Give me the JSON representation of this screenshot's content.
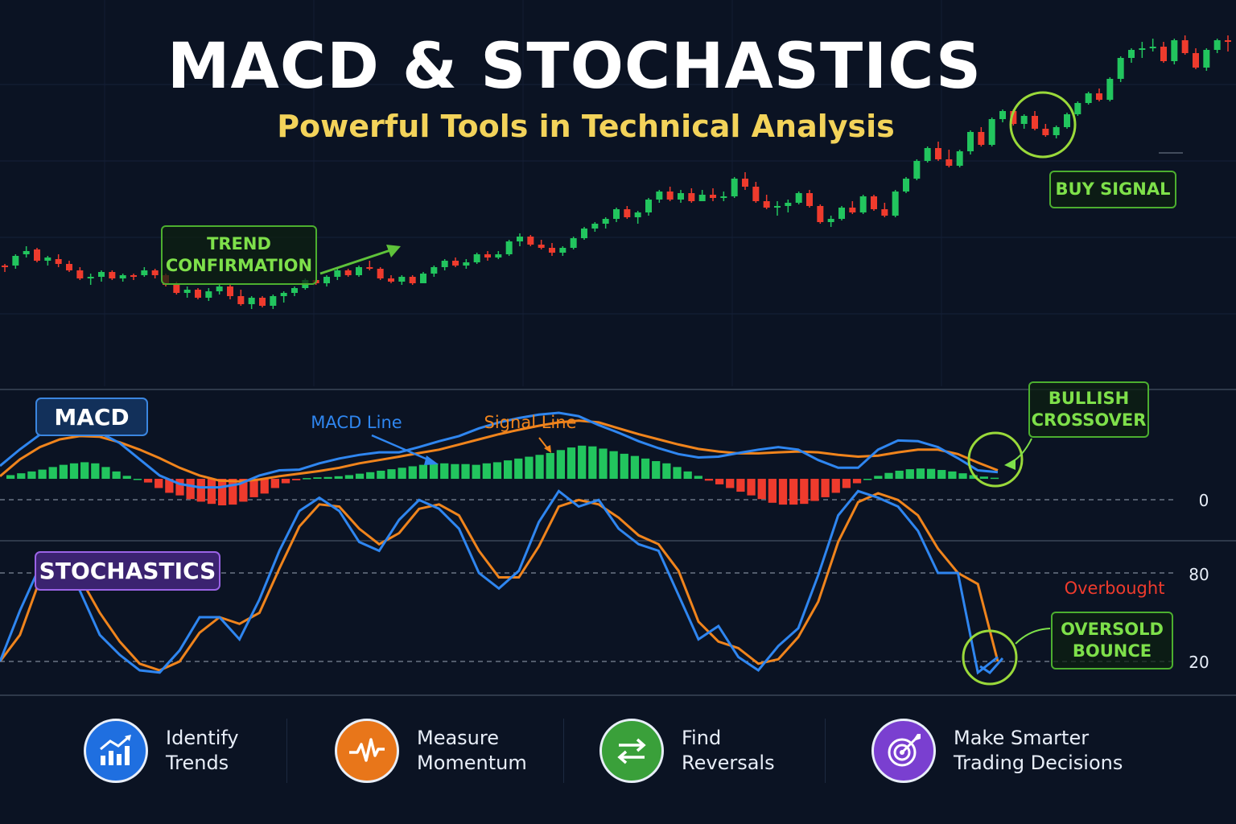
{
  "header": {
    "title": "MACD & STOCHASTICS",
    "subtitle": "Powerful Tools in Technical Analysis"
  },
  "callouts": {
    "trend": [
      "TREND",
      "CONFIRMATION"
    ],
    "buy": "BUY SIGNAL",
    "bullish": [
      "BULLISH",
      "CROSSOVER"
    ],
    "oversold": [
      "OVERSOLD",
      "BOUNCE"
    ]
  },
  "panels": {
    "macd_label": "MACD",
    "stoch_label": "STOCHASTICS",
    "macd_line_label": "MACD Line",
    "signal_line_label": "Signal Line",
    "zero_label": "0",
    "level_80": "80",
    "level_20": "20",
    "overbought_label": "Overbought"
  },
  "footer": [
    {
      "line1": "Identify",
      "line2": "Trends",
      "icon": "bar-chart-up-icon",
      "color": "#1f6fe0"
    },
    {
      "line1": "Measure",
      "line2": "Momentum",
      "icon": "pulse-icon",
      "color": "#e8761a"
    },
    {
      "line1": "Find",
      "line2": "Reversals",
      "icon": "swap-arrows-icon",
      "color": "#3aa03a"
    },
    {
      "line1": "Make Smarter",
      "line2": "Trading Decisions",
      "icon": "target-icon",
      "color": "#7a3fd0"
    }
  ],
  "colors": {
    "background": "#0b1323",
    "bull": "#22c55e",
    "bear": "#ef3b2d",
    "macd_line": "#2f86f0",
    "signal_line": "#f0841c",
    "title": "#ffffff",
    "subtitle": "#f3d35a",
    "callout_green": "#7ee04a",
    "overbought_red": "#ef3b2d"
  },
  "chart_data": [
    {
      "type": "candlestick",
      "title": "",
      "series": [
        {
          "values": [
            [
              15,
              16,
              11,
              14
            ],
            [
              15,
              22,
              13,
              21
            ],
            [
              22,
              27,
              20,
              24
            ],
            [
              25,
              26,
              17,
              18
            ],
            [
              18,
              21,
              15,
              20
            ],
            [
              19,
              22,
              14,
              16
            ],
            [
              16,
              18,
              11,
              12
            ],
            [
              12,
              14,
              6,
              7
            ],
            [
              7,
              10,
              3,
              8
            ],
            [
              8,
              12,
              5,
              11
            ],
            [
              11,
              12,
              6,
              7
            ],
            [
              7,
              10,
              5,
              9
            ],
            [
              9,
              10,
              6,
              8
            ],
            [
              9,
              14,
              8,
              12
            ],
            [
              12,
              13,
              7,
              9
            ],
            [
              9,
              10,
              2,
              3
            ],
            [
              3,
              5,
              -3,
              -2
            ],
            [
              -2,
              2,
              -5,
              0
            ],
            [
              0,
              1,
              -6,
              -5
            ],
            [
              -5,
              1,
              -7,
              -1
            ],
            [
              -1,
              4,
              -3,
              2
            ],
            [
              2,
              3,
              -6,
              -4
            ],
            [
              -4,
              0,
              -10,
              -9
            ],
            [
              -9,
              -4,
              -12,
              -5
            ],
            [
              -5,
              -4,
              -11,
              -10
            ],
            [
              -10,
              -3,
              -12,
              -4
            ],
            [
              -4,
              -1,
              -8,
              -2
            ],
            [
              -2,
              2,
              -4,
              1
            ],
            [
              1,
              7,
              0,
              6
            ],
            [
              6,
              8,
              3,
              4
            ],
            [
              4,
              9,
              2,
              8
            ],
            [
              8,
              13,
              6,
              12
            ],
            [
              12,
              13,
              8,
              9
            ],
            [
              9,
              15,
              8,
              14
            ],
            [
              14,
              18,
              12,
              13
            ],
            [
              13,
              14,
              6,
              7
            ],
            [
              7,
              9,
              4,
              5
            ],
            [
              5,
              9,
              3,
              8
            ],
            [
              8,
              9,
              3,
              4
            ],
            [
              4,
              11,
              4,
              10
            ],
            [
              10,
              15,
              8,
              14
            ],
            [
              14,
              19,
              12,
              18
            ],
            [
              18,
              20,
              14,
              15
            ],
            [
              15,
              19,
              13,
              17
            ],
            [
              17,
              23,
              16,
              22
            ],
            [
              22,
              24,
              18,
              20
            ],
            [
              20,
              24,
              19,
              22
            ],
            [
              22,
              31,
              21,
              30
            ],
            [
              30,
              35,
              27,
              33
            ],
            [
              33,
              34,
              27,
              28
            ],
            [
              28,
              31,
              25,
              26
            ],
            [
              26,
              29,
              21,
              23
            ],
            [
              23,
              27,
              21,
              26
            ],
            [
              26,
              33,
              25,
              32
            ],
            [
              32,
              39,
              31,
              38
            ],
            [
              38,
              42,
              36,
              41
            ],
            [
              41,
              45,
              38,
              44
            ],
            [
              44,
              51,
              42,
              50
            ],
            [
              50,
              52,
              44,
              45
            ],
            [
              45,
              49,
              41,
              48
            ],
            [
              48,
              57,
              46,
              56
            ],
            [
              56,
              62,
              54,
              61
            ],
            [
              61,
              64,
              55,
              56
            ],
            [
              56,
              62,
              54,
              60
            ],
            [
              60,
              63,
              54,
              55
            ],
            [
              55,
              62,
              55,
              59
            ],
            [
              59,
              63,
              55,
              57
            ],
            [
              57,
              61,
              55,
              58
            ],
            [
              58,
              70,
              57,
              69
            ],
            [
              69,
              73,
              62,
              64
            ],
            [
              64,
              67,
              54,
              55
            ],
            [
              55,
              59,
              50,
              51
            ],
            [
              51,
              55,
              46,
              52
            ],
            [
              52,
              56,
              48,
              54
            ],
            [
              54,
              61,
              53,
              60
            ],
            [
              60,
              62,
              51,
              52
            ],
            [
              52,
              53,
              41,
              42
            ],
            [
              42,
              46,
              39,
              44
            ],
            [
              44,
              52,
              43,
              51
            ],
            [
              51,
              55,
              47,
              48
            ],
            [
              48,
              59,
              47,
              58
            ],
            [
              58,
              59,
              49,
              50
            ],
            [
              50,
              54,
              45,
              46
            ],
            [
              46,
              62,
              45,
              61
            ],
            [
              61,
              70,
              60,
              69
            ],
            [
              69,
              81,
              68,
              80
            ],
            [
              80,
              89,
              79,
              88
            ],
            [
              88,
              92,
              80,
              81
            ],
            [
              81,
              87,
              76,
              77
            ],
            [
              77,
              87,
              76,
              86
            ],
            [
              86,
              99,
              84,
              98
            ],
            [
              98,
              101,
              89,
              90
            ],
            [
              90,
              107,
              89,
              106
            ],
            [
              106,
              112,
              104,
              111
            ],
            [
              111,
              112,
              102,
              103
            ],
            [
              103,
              109,
              100,
              108
            ],
            [
              108,
              111,
              99,
              100
            ],
            [
              100,
              103,
              95,
              96
            ],
            [
              96,
              102,
              94,
              101
            ],
            [
              101,
              110,
              100,
              109
            ],
            [
              109,
              117,
              108,
              116
            ],
            [
              116,
              123,
              115,
              122
            ],
            [
              122,
              125,
              117,
              118
            ],
            [
              118,
              132,
              117,
              131
            ],
            [
              131,
              145,
              129,
              144
            ],
            [
              144,
              150,
              141,
              149
            ],
            [
              149,
              154,
              144,
              150
            ],
            [
              150,
              156,
              148,
              151
            ],
            [
              151,
              154,
              141,
              142
            ],
            [
              142,
              156,
              140,
              155
            ],
            [
              155,
              158,
              146,
              147
            ],
            [
              147,
              150,
              137,
              138
            ],
            [
              138,
              150,
              136,
              149
            ],
            [
              149,
              156,
              147,
              155
            ],
            [
              155,
              158,
              148,
              154
            ]
          ]
        }
      ]
    },
    {
      "type": "line",
      "title": "MACD",
      "x": [
        0,
        2,
        4,
        6,
        8,
        10,
        12,
        14,
        16,
        18,
        20,
        22,
        24,
        26,
        28,
        30,
        32,
        34,
        36,
        38,
        40,
        42,
        44,
        46,
        48,
        50,
        52,
        54,
        56,
        58,
        60,
        62,
        64,
        66,
        68,
        70,
        72,
        74,
        76,
        78,
        80,
        82,
        84,
        86,
        88,
        90,
        92,
        94,
        96,
        98,
        100
      ],
      "ylim": [
        -1.2,
        1.9
      ],
      "series": [
        {
          "name": "MACD Line",
          "values": [
            0.35,
            0.8,
            1.2,
            1.37,
            1.37,
            1.25,
            0.97,
            0.53,
            0.09,
            -0.14,
            -0.23,
            -0.23,
            -0.14,
            0.09,
            0.23,
            0.25,
            0.42,
            0.55,
            0.65,
            0.72,
            0.72,
            0.86,
            1.02,
            1.16,
            1.37,
            1.53,
            1.65,
            1.74,
            1.79,
            1.7,
            1.46,
            1.25,
            1.02,
            0.83,
            0.67,
            0.58,
            0.6,
            0.7,
            0.79,
            0.86,
            0.79,
            0.51,
            0.3,
            0.3,
            0.79,
            1.04,
            1.02,
            0.86,
            0.56,
            0.23,
            0.18
          ]
        },
        {
          "name": "Signal Line",
          "values": [
            0.07,
            0.53,
            0.86,
            1.07,
            1.16,
            1.14,
            0.99,
            0.79,
            0.56,
            0.3,
            0.09,
            -0.05,
            -0.07,
            -0.02,
            0.07,
            0.14,
            0.21,
            0.3,
            0.42,
            0.51,
            0.6,
            0.7,
            0.79,
            0.93,
            1.07,
            1.21,
            1.33,
            1.44,
            1.53,
            1.58,
            1.53,
            1.37,
            1.21,
            1.07,
            0.93,
            0.81,
            0.74,
            0.69,
            0.69,
            0.72,
            0.74,
            0.72,
            0.65,
            0.6,
            0.63,
            0.72,
            0.79,
            0.79,
            0.67,
            0.44,
            0.23
          ]
        }
      ],
      "histogram": [
        0.1,
        0.15,
        0.2,
        0.25,
        0.32,
        0.38,
        0.42,
        0.45,
        0.42,
        0.32,
        0.2,
        0.08,
        0,
        -0.1,
        -0.25,
        -0.38,
        -0.45,
        -0.55,
        -0.62,
        -0.68,
        -0.72,
        -0.7,
        -0.62,
        -0.5,
        -0.4,
        -0.25,
        -0.12,
        -0.04,
        0.02,
        0.04,
        0.05,
        0.07,
        0.1,
        0.14,
        0.18,
        0.22,
        0.26,
        0.3,
        0.34,
        0.38,
        0.42,
        0.42,
        0.4,
        0.4,
        0.38,
        0.42,
        0.45,
        0.5,
        0.55,
        0.6,
        0.65,
        0.7,
        0.78,
        0.85,
        0.9,
        0.88,
        0.82,
        0.75,
        0.68,
        0.62,
        0.55,
        0.48,
        0.42,
        0.32,
        0.2,
        0.08,
        -0.05,
        -0.15,
        -0.25,
        -0.35,
        -0.45,
        -0.55,
        -0.65,
        -0.7,
        -0.7,
        -0.68,
        -0.6,
        -0.5,
        -0.38,
        -0.25,
        -0.12,
        0,
        0.08,
        0.16,
        0.22,
        0.26,
        0.28,
        0.27,
        0.24,
        0.2,
        0.15,
        0.1,
        0.06,
        0.03
      ]
    },
    {
      "type": "line",
      "title": "STOCHASTICS",
      "x": [
        0,
        2,
        4,
        6,
        8,
        10,
        12,
        14,
        16,
        18,
        20,
        22,
        24,
        26,
        28,
        30,
        32,
        34,
        36,
        38,
        40,
        42,
        44,
        46,
        48,
        50,
        52,
        54,
        56,
        58,
        60,
        62,
        64,
        66,
        68,
        70,
        72,
        74,
        76,
        78,
        80,
        82,
        84,
        86,
        88,
        90,
        92,
        94,
        96,
        98,
        100
      ],
      "ylim": [
        0,
        100
      ],
      "series": [
        {
          "name": "%K",
          "values": [
            20,
            43,
            63,
            68,
            52,
            32,
            23,
            16,
            15,
            25,
            40,
            40,
            30,
            48,
            70,
            88,
            94,
            88,
            74,
            70,
            84,
            93,
            89,
            80,
            60,
            53,
            61,
            83,
            97,
            90,
            93,
            80,
            73,
            70,
            50,
            30,
            36,
            22,
            16,
            27,
            35,
            59,
            86,
            97,
            94,
            90,
            79,
            60,
            60,
            15,
            22
          ]
        },
        {
          "name": "%D",
          "values": [
            20,
            32,
            57,
            64,
            58,
            42,
            29,
            19,
            16,
            20,
            33,
            40,
            37,
            42,
            62,
            81,
            91,
            90,
            80,
            73,
            78,
            89,
            91,
            86,
            70,
            58,
            58,
            72,
            90,
            93,
            91,
            85,
            77,
            73,
            61,
            38,
            29,
            26,
            19,
            21,
            31,
            47,
            74,
            92,
            96,
            93,
            86,
            71,
            60,
            55,
            20
          ]
        }
      ],
      "levels": [
        80,
        20
      ]
    }
  ]
}
